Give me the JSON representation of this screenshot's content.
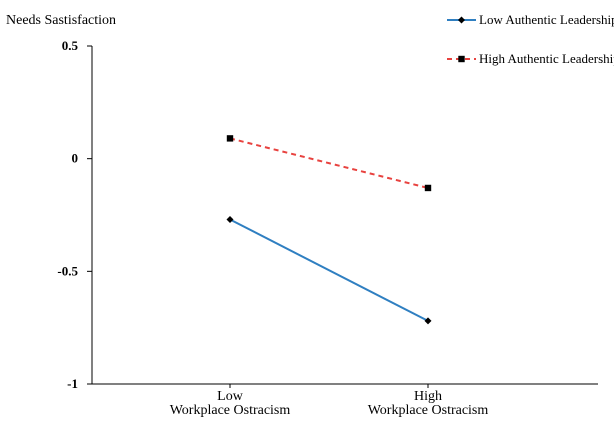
{
  "chart_data": {
    "type": "line",
    "title": "",
    "ylabel": "Needs Sastisfaction",
    "xlabel": "",
    "categories": [
      [
        "Low",
        "Workplace Ostracism"
      ],
      [
        "High",
        "Workplace Ostracism"
      ]
    ],
    "ylim": [
      -1,
      0.5
    ],
    "yticks": [
      0.5,
      0,
      -0.5,
      -1
    ],
    "ytick_labels": [
      "0.5",
      "0",
      "-0.5",
      "-1"
    ],
    "grid": false,
    "legend_position": "top-right",
    "series": [
      {
        "name": "Low Authentic Leadership",
        "values": [
          -0.27,
          -0.72
        ],
        "color": "#2f7fc1",
        "line_style": "solid",
        "marker": "diamond"
      },
      {
        "name": "High Authentic Leadership",
        "values": [
          0.09,
          -0.13
        ],
        "color": "#e8423f",
        "line_style": "dashed",
        "marker": "square"
      }
    ]
  }
}
